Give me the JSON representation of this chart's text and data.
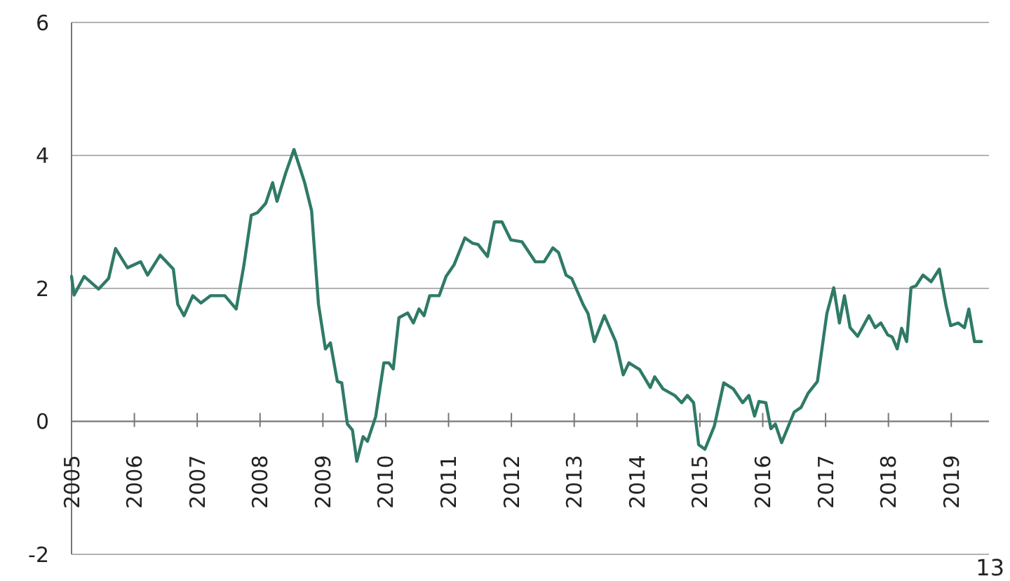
{
  "chart_data": {
    "type": "line",
    "xlim": [
      2005,
      2019.6
    ],
    "xticks": [
      2005,
      2006,
      2007,
      2008,
      2009,
      2010,
      2011,
      2012,
      2013,
      2014,
      2015,
      2016,
      2017,
      2018,
      2019
    ],
    "ylim": [
      -2,
      6
    ],
    "yticks": [
      -2,
      0,
      2,
      4,
      6
    ],
    "grid": "y",
    "annotations": [
      "13"
    ],
    "series": [
      {
        "color": "#2f7a67",
        "x": [
          2005.0,
          2005.04,
          2005.2,
          2005.43,
          2005.59,
          2005.7,
          2005.89,
          2006.1,
          2006.21,
          2006.41,
          2006.62,
          2006.69,
          2006.79,
          2006.93,
          2007.06,
          2007.21,
          2007.44,
          2007.62,
          2007.74,
          2007.86,
          2007.96,
          2008.09,
          2008.2,
          2008.27,
          2008.41,
          2008.54,
          2008.71,
          2008.82,
          2008.93,
          2009.04,
          2009.12,
          2009.23,
          2009.3,
          2009.39,
          2009.47,
          2009.54,
          2009.64,
          2009.71,
          2009.84,
          2009.97,
          2010.05,
          2010.12,
          2010.21,
          2010.35,
          2010.44,
          2010.53,
          2010.61,
          2010.7,
          2010.85,
          2010.96,
          2011.09,
          2011.26,
          2011.38,
          2011.47,
          2011.62,
          2011.73,
          2011.85,
          2011.99,
          2012.17,
          2012.38,
          2012.52,
          2012.66,
          2012.75,
          2012.87,
          2012.96,
          2013.14,
          2013.22,
          2013.32,
          2013.48,
          2013.66,
          2013.78,
          2013.87,
          2014.04,
          2014.21,
          2014.28,
          2014.41,
          2014.6,
          2014.71,
          2014.8,
          2014.9,
          2014.98,
          2015.08,
          2015.23,
          2015.38,
          2015.53,
          2015.68,
          2015.78,
          2015.87,
          2015.94,
          2016.05,
          2016.13,
          2016.2,
          2016.3,
          2016.5,
          2016.61,
          2016.72,
          2016.87,
          2017.02,
          2017.13,
          2017.22,
          2017.3,
          2017.39,
          2017.51,
          2017.69,
          2017.79,
          2017.88,
          2017.99,
          2018.06,
          2018.14,
          2018.21,
          2018.29,
          2018.36,
          2018.44,
          2018.55,
          2018.68,
          2018.81,
          2018.92,
          2018.99,
          2019.11,
          2019.21,
          2019.28,
          2019.37,
          2019.48
        ],
        "values": [
          2.18,
          1.9,
          2.18,
          1.99,
          2.15,
          2.6,
          2.31,
          2.4,
          2.2,
          2.5,
          2.29,
          1.76,
          1.59,
          1.89,
          1.78,
          1.89,
          1.89,
          1.69,
          2.33,
          3.1,
          3.14,
          3.28,
          3.59,
          3.31,
          3.74,
          4.09,
          3.59,
          3.17,
          1.76,
          1.09,
          1.18,
          0.6,
          0.58,
          -0.04,
          -0.13,
          -0.6,
          -0.23,
          -0.3,
          0.07,
          0.88,
          0.88,
          0.79,
          1.56,
          1.63,
          1.48,
          1.69,
          1.59,
          1.89,
          1.89,
          2.18,
          2.36,
          2.76,
          2.68,
          2.66,
          2.48,
          3.0,
          3.0,
          2.73,
          2.7,
          2.4,
          2.4,
          2.61,
          2.54,
          2.2,
          2.15,
          1.76,
          1.62,
          1.2,
          1.59,
          1.2,
          0.7,
          0.88,
          0.78,
          0.51,
          0.67,
          0.49,
          0.39,
          0.28,
          0.39,
          0.28,
          -0.35,
          -0.42,
          -0.07,
          0.58,
          0.49,
          0.28,
          0.39,
          0.08,
          0.3,
          0.28,
          -0.11,
          -0.04,
          -0.32,
          0.14,
          0.21,
          0.42,
          0.6,
          1.62,
          2.01,
          1.48,
          1.89,
          1.41,
          1.28,
          1.59,
          1.41,
          1.48,
          1.3,
          1.27,
          1.09,
          1.4,
          1.2,
          2.01,
          2.04,
          2.2,
          2.1,
          2.29,
          1.73,
          1.44,
          1.48,
          1.41,
          1.69,
          1.2,
          1.2
        ]
      }
    ]
  }
}
